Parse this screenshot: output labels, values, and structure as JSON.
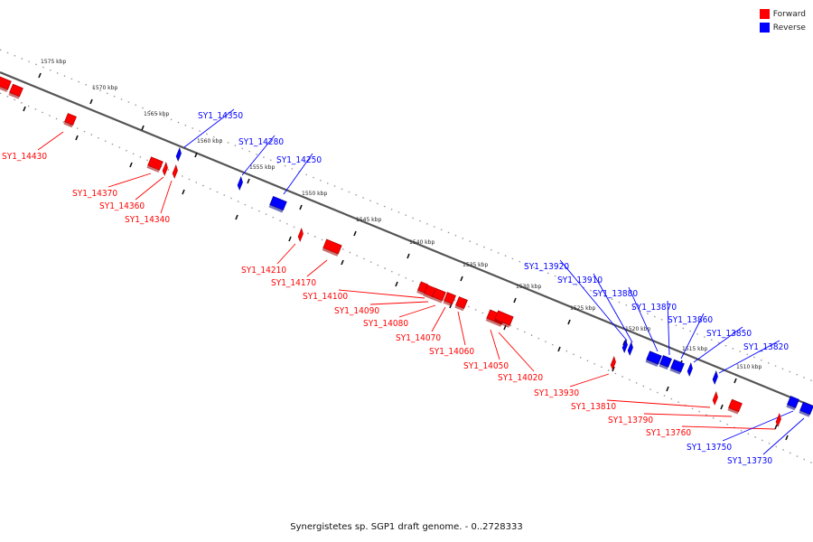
{
  "caption": "Synergistetes sp. SGP1 draft genome. - 0..2728333",
  "legend": [
    {
      "label": "Forward",
      "color": "#ff0000"
    },
    {
      "label": "Reverse",
      "color": "#0000ff"
    }
  ],
  "colors": {
    "forward": "#ff0000",
    "reverse": "#0000ff",
    "backbone": "#555555",
    "forward_dark": "#a00000",
    "reverse_dark": "#00008a"
  },
  "ticks": [
    "1575 kbp",
    "1570 kbp",
    "1565 kbp",
    "1560 kbp",
    "1555 kbp",
    "1550 kbp",
    "1545 kbp",
    "1540 kbp",
    "1535 kbp",
    "1530 kbp",
    "1525 kbp",
    "1520 kbp",
    "1515 kbp",
    "1510 kbp"
  ],
  "genes": [
    {
      "label": "SY1_14430",
      "strand": "forward"
    },
    {
      "label": "SY1_14370",
      "strand": "forward"
    },
    {
      "label": "SY1_14360",
      "strand": "forward"
    },
    {
      "label": "SY1_14340",
      "strand": "forward"
    },
    {
      "label": "SY1_14350",
      "strand": "reverse"
    },
    {
      "label": "SY1_14280",
      "strand": "reverse"
    },
    {
      "label": "SY1_14250",
      "strand": "reverse"
    },
    {
      "label": "SY1_14210",
      "strand": "forward"
    },
    {
      "label": "SY1_14170",
      "strand": "forward"
    },
    {
      "label": "SY1_14100",
      "strand": "forward"
    },
    {
      "label": "SY1_14090",
      "strand": "forward"
    },
    {
      "label": "SY1_14080",
      "strand": "forward"
    },
    {
      "label": "SY1_14070",
      "strand": "forward"
    },
    {
      "label": "SY1_14060",
      "strand": "forward"
    },
    {
      "label": "SY1_14050",
      "strand": "forward"
    },
    {
      "label": "SY1_14020",
      "strand": "forward"
    },
    {
      "label": "SY1_13930",
      "strand": "forward"
    },
    {
      "label": "SY1_13920",
      "strand": "reverse"
    },
    {
      "label": "SY1_13910",
      "strand": "reverse"
    },
    {
      "label": "SY1_13880",
      "strand": "reverse"
    },
    {
      "label": "SY1_13870",
      "strand": "reverse"
    },
    {
      "label": "SY1_13860",
      "strand": "reverse"
    },
    {
      "label": "SY1_13850",
      "strand": "reverse"
    },
    {
      "label": "SY1_13820",
      "strand": "reverse"
    },
    {
      "label": "SY1_13810",
      "strand": "forward"
    },
    {
      "label": "SY1_13790",
      "strand": "forward"
    },
    {
      "label": "SY1_13760",
      "strand": "forward"
    },
    {
      "label": "SY1_13750",
      "strand": "reverse"
    },
    {
      "label": "SY1_13730",
      "strand": "reverse"
    }
  ]
}
